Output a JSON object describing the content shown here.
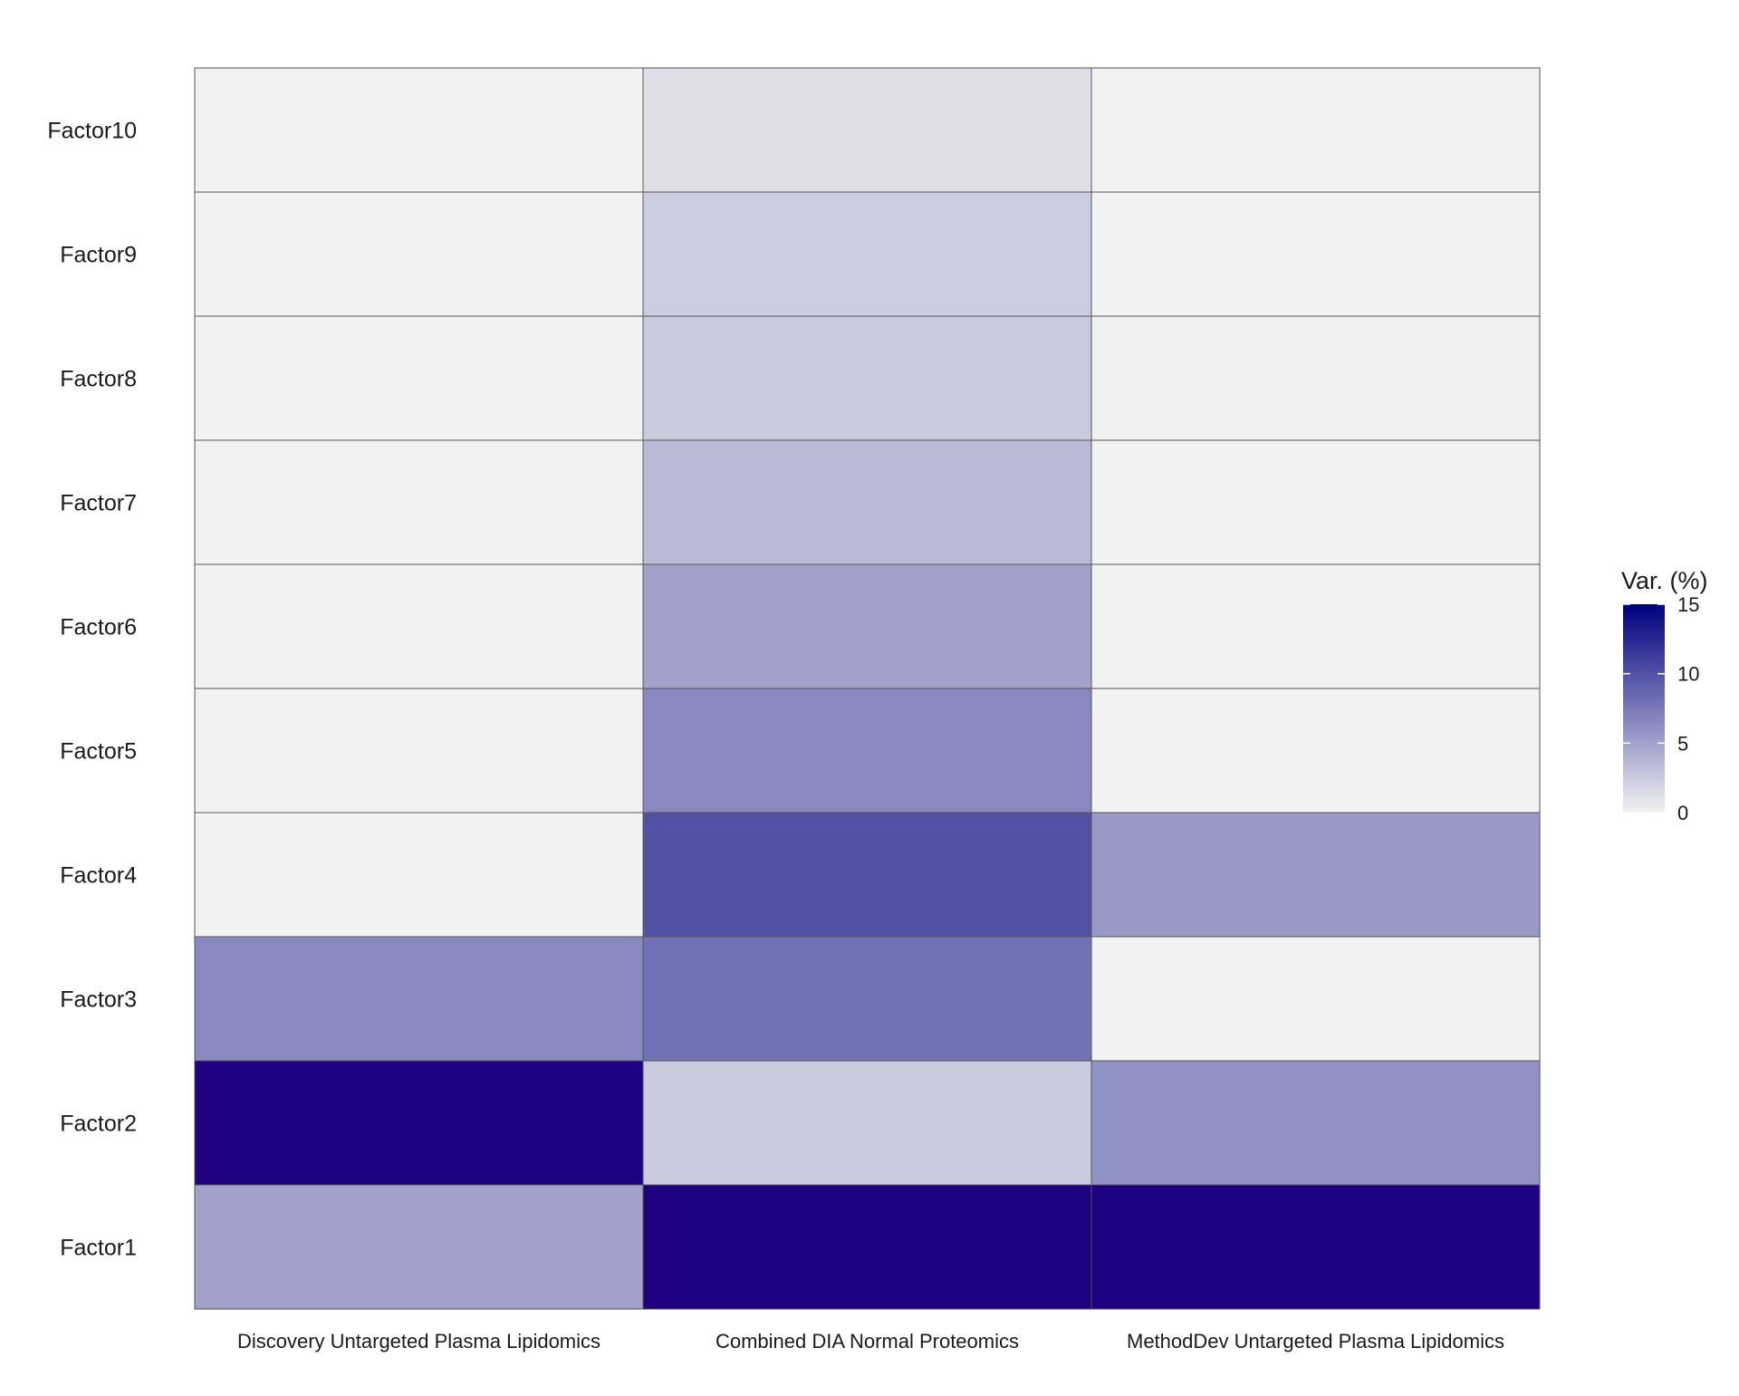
{
  "chart_data": {
    "type": "heatmap",
    "title": "",
    "xlabel": "",
    "ylabel": "",
    "x_categories": [
      "Discovery Untargeted Plasma Lipidomics",
      "Combined DIA Normal Proteomics",
      "MethodDev Untargeted Plasma Lipidomics"
    ],
    "y_categories": [
      "Factor1",
      "Factor2",
      "Factor3",
      "Factor4",
      "Factor5",
      "Factor6",
      "Factor7",
      "Factor8",
      "Factor9",
      "Factor10"
    ],
    "values": [
      [
        5.0,
        20.0,
        17.0
      ],
      [
        20.0,
        2.5,
        6.0
      ],
      [
        6.5,
        8.0,
        0.0
      ],
      [
        0.0,
        10.0,
        5.5
      ],
      [
        0.0,
        6.5,
        0.0
      ],
      [
        0.0,
        5.0,
        0.0
      ],
      [
        0.0,
        3.5,
        0.0
      ],
      [
        0.0,
        2.5,
        0.1
      ],
      [
        0.0,
        2.3,
        0.0
      ],
      [
        0.0,
        1.2,
        0.0
      ]
    ],
    "legend": {
      "title": "Var. (%)",
      "ticks": [
        0,
        5,
        10,
        15
      ],
      "range": [
        0,
        15
      ],
      "low_color": "#f2f2f2",
      "high_color": "#000080",
      "oversaturated_color": "#1f0080",
      "placement": "right"
    },
    "grid": false
  }
}
